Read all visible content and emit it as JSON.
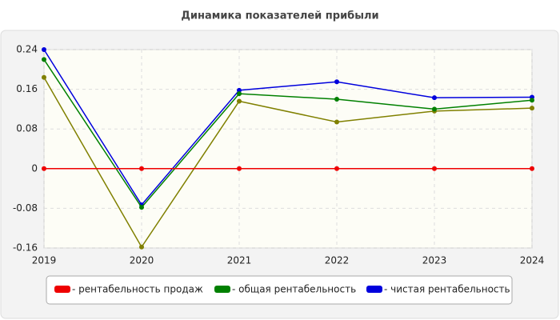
{
  "chart_data": {
    "type": "line",
    "title": "Динамика показателей прибыли",
    "x": [
      2019,
      2020,
      2021,
      2022,
      2023,
      2024
    ],
    "xlim": [
      2019,
      2024
    ],
    "xticks": [
      2019,
      2020,
      2021,
      2022,
      2023,
      2024
    ],
    "ylim": [
      -0.16,
      0.24
    ],
    "yticks": [
      -0.16,
      -0.08,
      0,
      0.08,
      0.16,
      0.24
    ],
    "grid": true,
    "series": [
      {
        "name": "- рентабельность продаж",
        "color": "#ee0000",
        "values": [
          0,
          0,
          0,
          0,
          0,
          0
        ]
      },
      {
        "name": "- общая рентабельность",
        "color": "#008000",
        "values": [
          0.22,
          -0.078,
          0.151,
          0.14,
          0.12,
          0.138
        ]
      },
      {
        "name": "- чистая рентабельность",
        "color": "#0000dd",
        "values": [
          0.24,
          -0.073,
          0.158,
          0.175,
          0.143,
          0.144
        ]
      },
      {
        "color": "#808000",
        "values": [
          0.184,
          -0.158,
          0.136,
          0.094,
          0.116,
          0.122
        ]
      }
    ]
  }
}
